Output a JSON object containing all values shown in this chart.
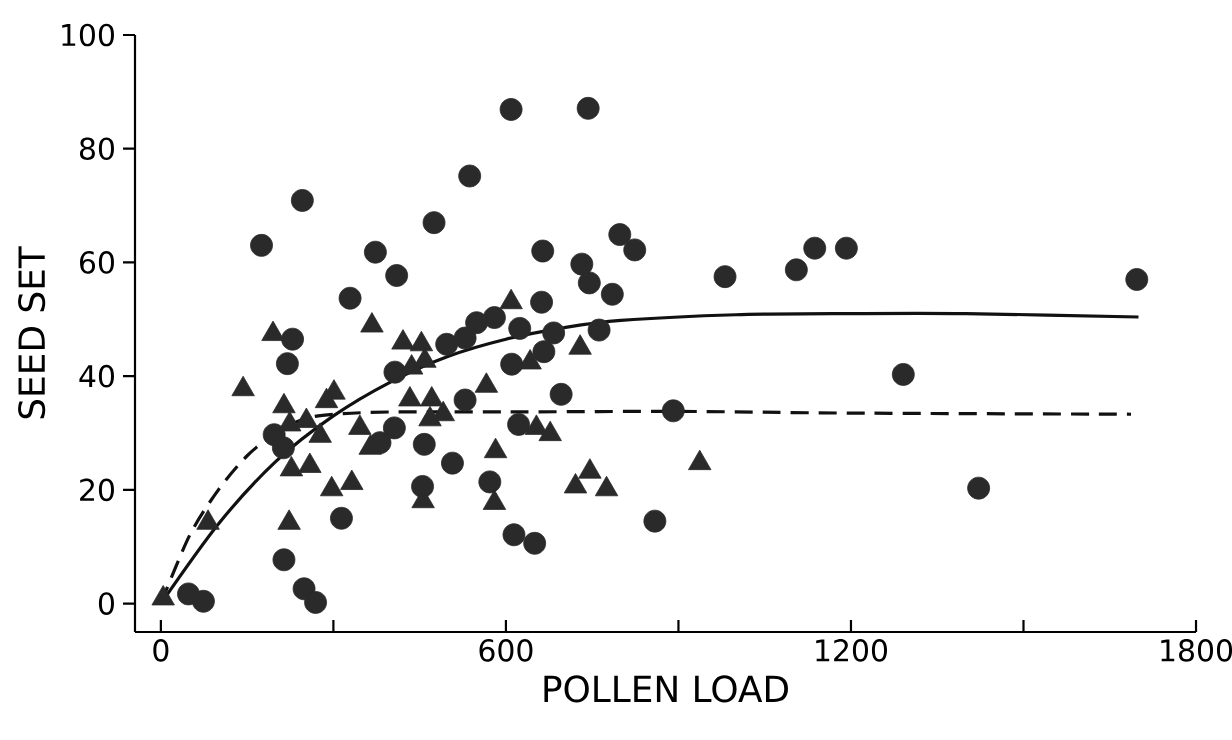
{
  "chart_data": {
    "type": "scatter",
    "xlabel": "POLLEN LOAD",
    "ylabel": "SEED SET",
    "xlim": [
      -45,
      1800
    ],
    "ylim": [
      -5,
      100
    ],
    "xticks": [
      0,
      {
        "value": 300,
        "label": null
      },
      600,
      {
        "value": 900,
        "label": null
      },
      1200,
      {
        "value": 1500,
        "label": null
      },
      1800
    ],
    "yticks": [
      0,
      20,
      40,
      60,
      80,
      100
    ],
    "series": [
      {
        "marker": "circle",
        "color": "#2a2a2a",
        "x": [
          246,
          175,
          475,
          373,
          410,
          329,
          229,
          220,
          407,
          406,
          381,
          458,
          507,
          197,
          213,
          455,
          314,
          214,
          249,
          269,
          48,
          74,
          609,
          743,
          537,
          664,
          798,
          824,
          732,
          745,
          785,
          981,
          1105,
          1137,
          662,
          580,
          549,
          529,
          497,
          624,
          683,
          762,
          666,
          610,
          529,
          696,
          891,
          622,
          572,
          859,
          614,
          650,
          1192,
          1697,
          1291,
          1422
        ],
        "values": [
          70.9,
          63.0,
          67.0,
          61.8,
          57.7,
          53.7,
          46.5,
          42.2,
          40.7,
          30.9,
          28.3,
          28.0,
          24.7,
          29.7,
          27.4,
          20.6,
          15.0,
          7.7,
          2.6,
          0.2,
          1.7,
          0.4,
          86.9,
          87.1,
          75.2,
          62.0,
          64.9,
          62.2,
          59.7,
          56.4,
          54.4,
          57.5,
          58.7,
          62.5,
          53.0,
          50.3,
          49.4,
          46.7,
          45.6,
          48.4,
          47.6,
          48.1,
          44.3,
          42.1,
          35.8,
          36.8,
          33.9,
          31.5,
          21.4,
          14.5,
          12.1,
          10.6,
          62.5,
          57.0,
          40.3,
          20.3
        ]
      },
      {
        "marker": "triangle",
        "color": "#2a2a2a",
        "x": [
          195,
          367,
          143,
          214,
          224,
          253,
          301,
          288,
          421,
          453,
          436,
          459,
          346,
          277,
          364,
          433,
          471,
          491,
          468,
          227,
          259,
          300,
          332,
          297,
          456,
          82,
          223,
          4,
          609,
          642,
          729,
          566,
          653,
          677,
          582,
          937,
          746,
          721,
          775,
          580
        ],
        "values": [
          47.4,
          48.9,
          37.7,
          34.7,
          31.5,
          32.1,
          37.1,
          35.6,
          45.9,
          45.6,
          41.5,
          42.7,
          30.9,
          29.5,
          27.4,
          35.9,
          35.9,
          33.3,
          32.4,
          23.6,
          24.2,
          null,
          21.2,
          20.1,
          18.0,
          14.2,
          14.2,
          0.9,
          53.0,
          42.4,
          45.0,
          38.3,
          30.9,
          29.8,
          26.8,
          24.7,
          23.2,
          20.6,
          20.1,
          17.7
        ]
      },
      {
        "type": "line",
        "line_style": "solid",
        "marker": "none",
        "color": "#111111",
        "x": [
          0,
          100,
          200,
          300,
          400,
          500,
          600,
          700,
          800,
          1000,
          1200,
          1400,
          1700
        ],
        "values": [
          0,
          14,
          25,
          33,
          39,
          43.5,
          46.5,
          48.5,
          49.8,
          50.8,
          51,
          51,
          50.4
        ]
      },
      {
        "type": "line",
        "line_style": "dashed",
        "marker": "none",
        "color": "#111111",
        "x": [
          0,
          50,
          100,
          150,
          200,
          250,
          300,
          400,
          600,
          900,
          1200,
          1687
        ],
        "values": [
          0,
          12,
          20,
          26,
          30,
          32.5,
          33.3,
          33.7,
          33.7,
          33.8,
          33.5,
          33.3
        ]
      }
    ]
  }
}
